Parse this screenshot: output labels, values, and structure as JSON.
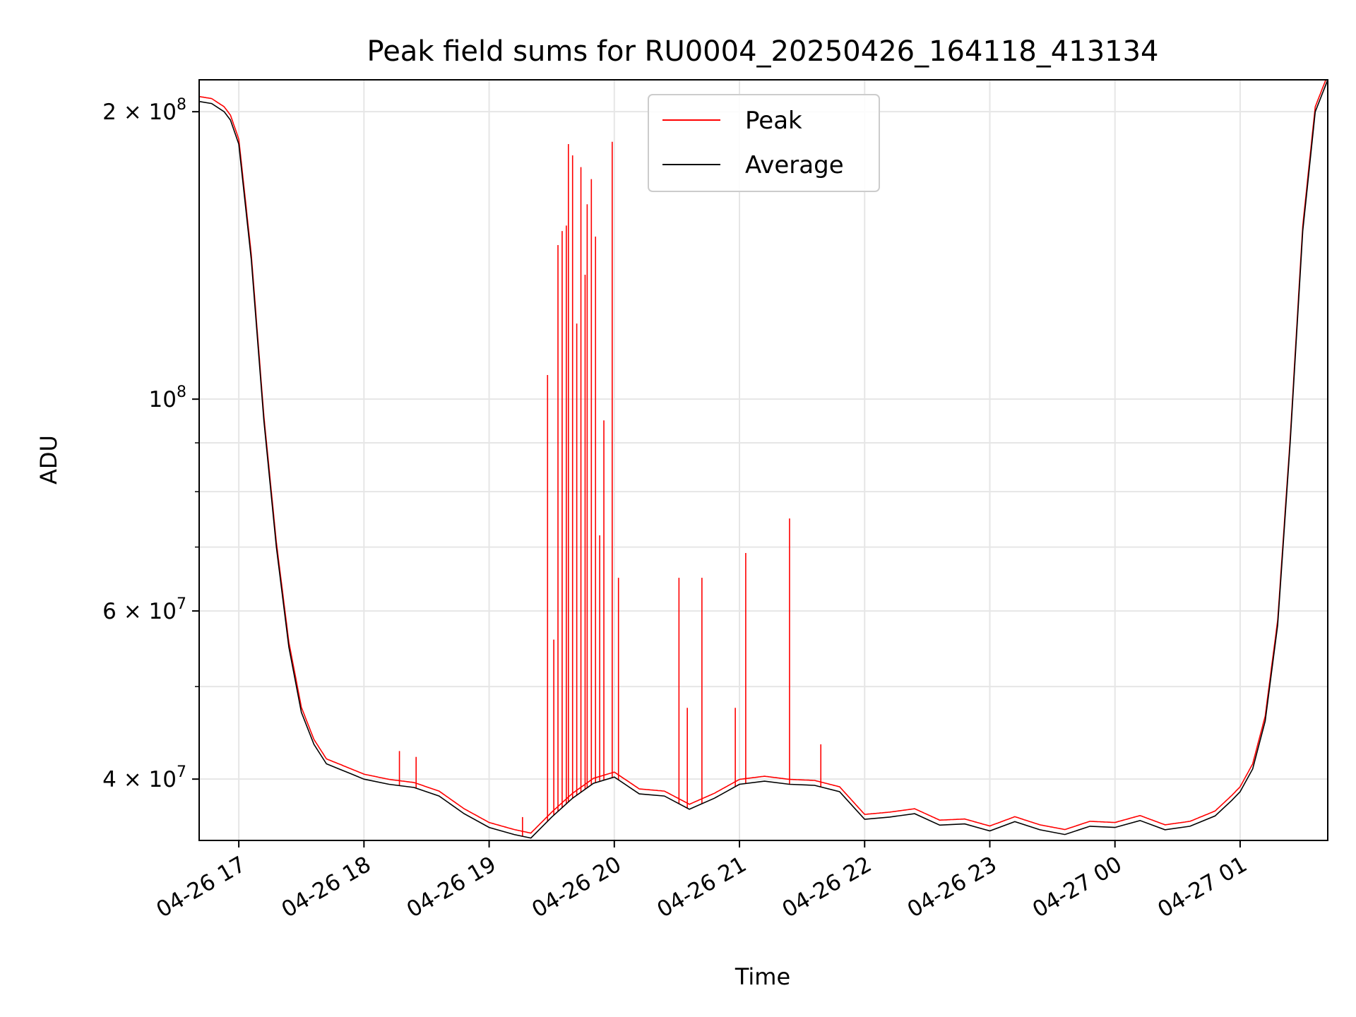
{
  "chart_data": {
    "type": "line",
    "title": "Peak field sums for RU0004_20250426_164118_413134",
    "xlabel": "Time",
    "ylabel": "ADU",
    "y_scale": "log",
    "ylim": [
      34500000,
      216000000
    ],
    "xlim": [
      "2025-04-26 16:41",
      "2025-04-27 01:42"
    ],
    "grid": true,
    "legend_position": "top-center",
    "x_tick_labels": [
      "04-26 17",
      "04-26 18",
      "04-26 19",
      "04-26 20",
      "04-26 21",
      "04-26 22",
      "04-26 23",
      "04-27 00",
      "04-27 01"
    ],
    "x_tick_values": [
      "2025-04-26 17:00",
      "2025-04-26 18:00",
      "2025-04-26 19:00",
      "2025-04-26 20:00",
      "2025-04-26 21:00",
      "2025-04-26 22:00",
      "2025-04-26 23:00",
      "2025-04-27 00:00",
      "2025-04-27 01:00"
    ],
    "y_major_ticks": [
      {
        "value": 40000000,
        "mant": "4",
        "exp": "7"
      },
      {
        "value": 60000000,
        "mant": "6",
        "exp": "7"
      },
      {
        "value": 100000000,
        "mant": "10",
        "exp": "8"
      },
      {
        "value": 200000000,
        "mant": "2",
        "exp": "8"
      }
    ],
    "y_minor_ticks": [
      50000000,
      70000000,
      80000000,
      90000000
    ],
    "series": [
      {
        "name": "Average",
        "color": "#000000",
        "x": [
          "2025-04-26 16:41",
          "2025-04-26 16:47",
          "2025-04-26 16:53",
          "2025-04-26 16:56",
          "2025-04-26 17:00",
          "2025-04-26 17:06",
          "2025-04-26 17:12",
          "2025-04-26 17:18",
          "2025-04-26 17:24",
          "2025-04-26 17:30",
          "2025-04-26 17:36",
          "2025-04-26 17:42",
          "2025-04-26 17:48",
          "2025-04-26 17:54",
          "2025-04-26 18:00",
          "2025-04-26 18:12",
          "2025-04-26 18:24",
          "2025-04-26 18:36",
          "2025-04-26 18:48",
          "2025-04-26 19:00",
          "2025-04-26 19:12",
          "2025-04-26 19:20",
          "2025-04-26 19:30",
          "2025-04-26 19:40",
          "2025-04-26 19:50",
          "2025-04-26 20:00",
          "2025-04-26 20:12",
          "2025-04-26 20:24",
          "2025-04-26 20:36",
          "2025-04-26 20:48",
          "2025-04-26 21:00",
          "2025-04-26 21:12",
          "2025-04-26 21:24",
          "2025-04-26 21:36",
          "2025-04-26 21:48",
          "2025-04-26 22:00",
          "2025-04-26 22:12",
          "2025-04-26 22:24",
          "2025-04-26 22:36",
          "2025-04-26 22:48",
          "2025-04-26 23:00",
          "2025-04-26 23:12",
          "2025-04-26 23:24",
          "2025-04-26 23:36",
          "2025-04-26 23:48",
          "2025-04-27 00:00",
          "2025-04-27 00:12",
          "2025-04-27 00:24",
          "2025-04-27 00:36",
          "2025-04-27 00:48",
          "2025-04-27 00:56",
          "2025-04-27 01:00",
          "2025-04-27 01:06",
          "2025-04-27 01:12",
          "2025-04-27 01:18",
          "2025-04-27 01:24",
          "2025-04-27 01:30",
          "2025-04-27 01:36",
          "2025-04-27 01:42"
        ],
        "values": [
          205000000,
          204000000,
          200000000,
          196000000,
          185000000,
          140000000,
          95000000,
          70000000,
          55000000,
          47000000,
          43500000,
          41500000,
          41000000,
          40500000,
          40000000,
          39500000,
          39200000,
          38400000,
          36800000,
          35600000,
          35000000,
          34700000,
          36500000,
          38200000,
          39600000,
          40200000,
          38600000,
          38400000,
          37200000,
          38200000,
          39500000,
          39800000,
          39500000,
          39400000,
          38800000,
          36300000,
          36500000,
          36800000,
          35800000,
          35900000,
          35300000,
          36100000,
          35400000,
          35000000,
          35700000,
          35600000,
          36200000,
          35400000,
          35700000,
          36600000,
          38000000,
          38800000,
          41000000,
          46000000,
          58000000,
          90000000,
          150000000,
          200000000,
          216000000
        ]
      },
      {
        "name": "Peak",
        "color": "#ff0000",
        "spikes": [
          {
            "x": "2025-04-26 18:17",
            "value": 42800000
          },
          {
            "x": "2025-04-26 18:25",
            "value": 42200000
          },
          {
            "x": "2025-04-26 19:16",
            "value": 36500000
          },
          {
            "x": "2025-04-26 19:28",
            "value": 106000000
          },
          {
            "x": "2025-04-26 19:31",
            "value": 56000000
          },
          {
            "x": "2025-04-26 19:33",
            "value": 145000000
          },
          {
            "x": "2025-04-26 19:35",
            "value": 150000000
          },
          {
            "x": "2025-04-26 19:37",
            "value": 152000000
          },
          {
            "x": "2025-04-26 19:38",
            "value": 185000000
          },
          {
            "x": "2025-04-26 19:40",
            "value": 180000000
          },
          {
            "x": "2025-04-26 19:42",
            "value": 120000000
          },
          {
            "x": "2025-04-26 19:44",
            "value": 175000000
          },
          {
            "x": "2025-04-26 19:46",
            "value": 135000000
          },
          {
            "x": "2025-04-26 19:47",
            "value": 160000000
          },
          {
            "x": "2025-04-26 19:49",
            "value": 170000000
          },
          {
            "x": "2025-04-26 19:51",
            "value": 148000000
          },
          {
            "x": "2025-04-26 19:53",
            "value": 72000000
          },
          {
            "x": "2025-04-26 19:55",
            "value": 95000000
          },
          {
            "x": "2025-04-26 19:59",
            "value": 186000000
          },
          {
            "x": "2025-04-26 20:02",
            "value": 65000000
          },
          {
            "x": "2025-04-26 20:31",
            "value": 65000000
          },
          {
            "x": "2025-04-26 20:35",
            "value": 47500000
          },
          {
            "x": "2025-04-26 20:42",
            "value": 65000000
          },
          {
            "x": "2025-04-26 20:58",
            "value": 47500000
          },
          {
            "x": "2025-04-26 21:03",
            "value": 69000000
          },
          {
            "x": "2025-04-26 21:24",
            "value": 75000000
          },
          {
            "x": "2025-04-26 21:39",
            "value": 43500000
          }
        ]
      }
    ]
  },
  "legend": [
    {
      "label": "Peak",
      "color": "#ff0000"
    },
    {
      "label": "Average",
      "color": "#000000"
    }
  ]
}
